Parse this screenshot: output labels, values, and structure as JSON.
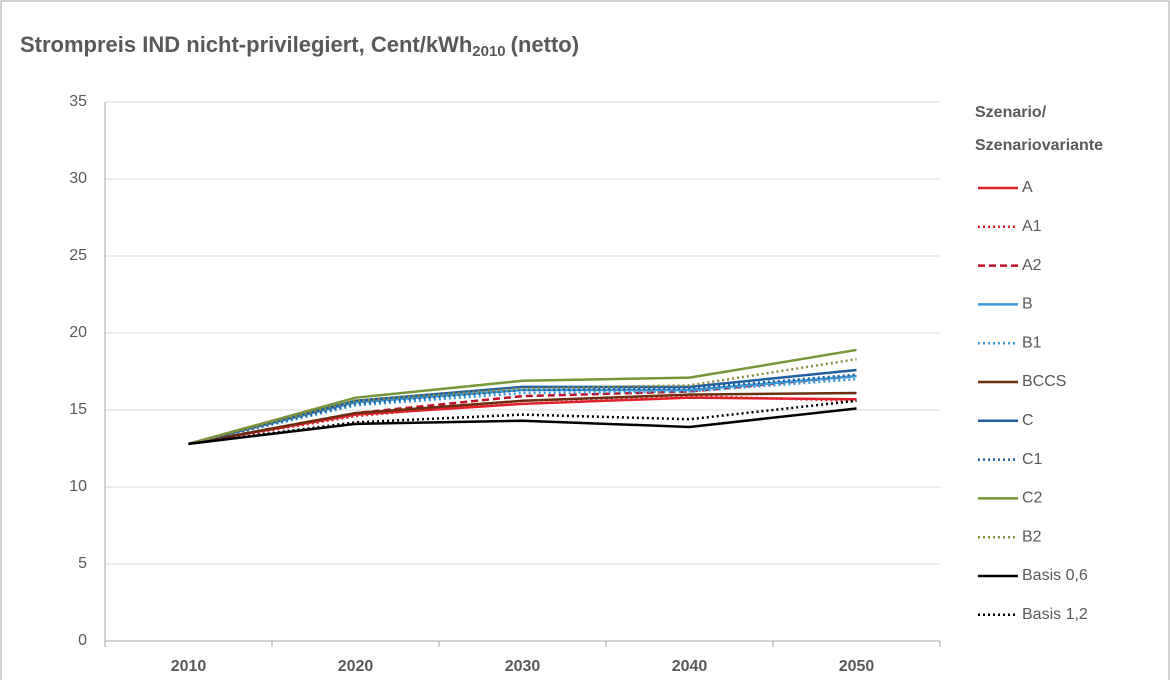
{
  "chart_data": {
    "type": "line",
    "title": [
      "Strompreis IND nicht-privilegiert, Cent/kWh",
      "2010",
      "(netto)"
    ],
    "legend_title": [
      "Szenario/",
      "Szenariovariante"
    ],
    "legend": "right",
    "grid": true,
    "categories": [
      "2010",
      "2020",
      "2030",
      "2040",
      "2050"
    ],
    "ylim": [
      0,
      35
    ],
    "yticks": [
      0,
      5,
      10,
      15,
      20,
      25,
      30,
      35
    ],
    "series": [
      {
        "name": "A",
        "color": "#e0202a",
        "dash": "solid",
        "values": [
          12.8,
          14.7,
          15.4,
          15.8,
          15.7
        ]
      },
      {
        "name": "A1",
        "color": "#e0202a",
        "dash": "dotted",
        "values": [
          12.8,
          14.6,
          15.6,
          15.9,
          15.6
        ]
      },
      {
        "name": "A2",
        "color": "#c0102a",
        "dash": "dashed",
        "values": [
          12.8,
          14.8,
          15.9,
          16.2,
          17.2
        ]
      },
      {
        "name": "B",
        "color": "#3a9ad9",
        "dash": "solid",
        "values": [
          12.8,
          15.5,
          16.3,
          16.3,
          17.2
        ]
      },
      {
        "name": "B1",
        "color": "#3a9ad9",
        "dash": "dotted",
        "values": [
          12.8,
          15.3,
          16.1,
          16.2,
          17.0
        ]
      },
      {
        "name": "BCCS",
        "color": "#6b2f0f",
        "dash": "solid",
        "values": [
          12.8,
          14.8,
          15.6,
          16.0,
          16.1
        ]
      },
      {
        "name": "C",
        "color": "#1f5fa0",
        "dash": "solid",
        "values": [
          12.8,
          15.6,
          16.5,
          16.5,
          17.6
        ]
      },
      {
        "name": "C1",
        "color": "#1f5fa0",
        "dash": "dotted",
        "values": [
          12.8,
          15.4,
          16.3,
          16.4,
          17.3
        ]
      },
      {
        "name": "C2",
        "color": "#77963a",
        "dash": "solid",
        "values": [
          12.8,
          15.8,
          16.9,
          17.1,
          18.9
        ]
      },
      {
        "name": "B2",
        "color": "#8a8a40",
        "dash": "dotted",
        "values": [
          12.8,
          15.6,
          16.4,
          16.6,
          18.3
        ]
      },
      {
        "name": "Basis 0,6",
        "color": "#000000",
        "dash": "solid",
        "values": [
          12.8,
          14.1,
          14.3,
          13.9,
          15.1
        ]
      },
      {
        "name": "Basis 1,2",
        "color": "#000000",
        "dash": "dotted",
        "values": [
          12.8,
          14.2,
          14.7,
          14.4,
          15.6
        ]
      }
    ]
  }
}
